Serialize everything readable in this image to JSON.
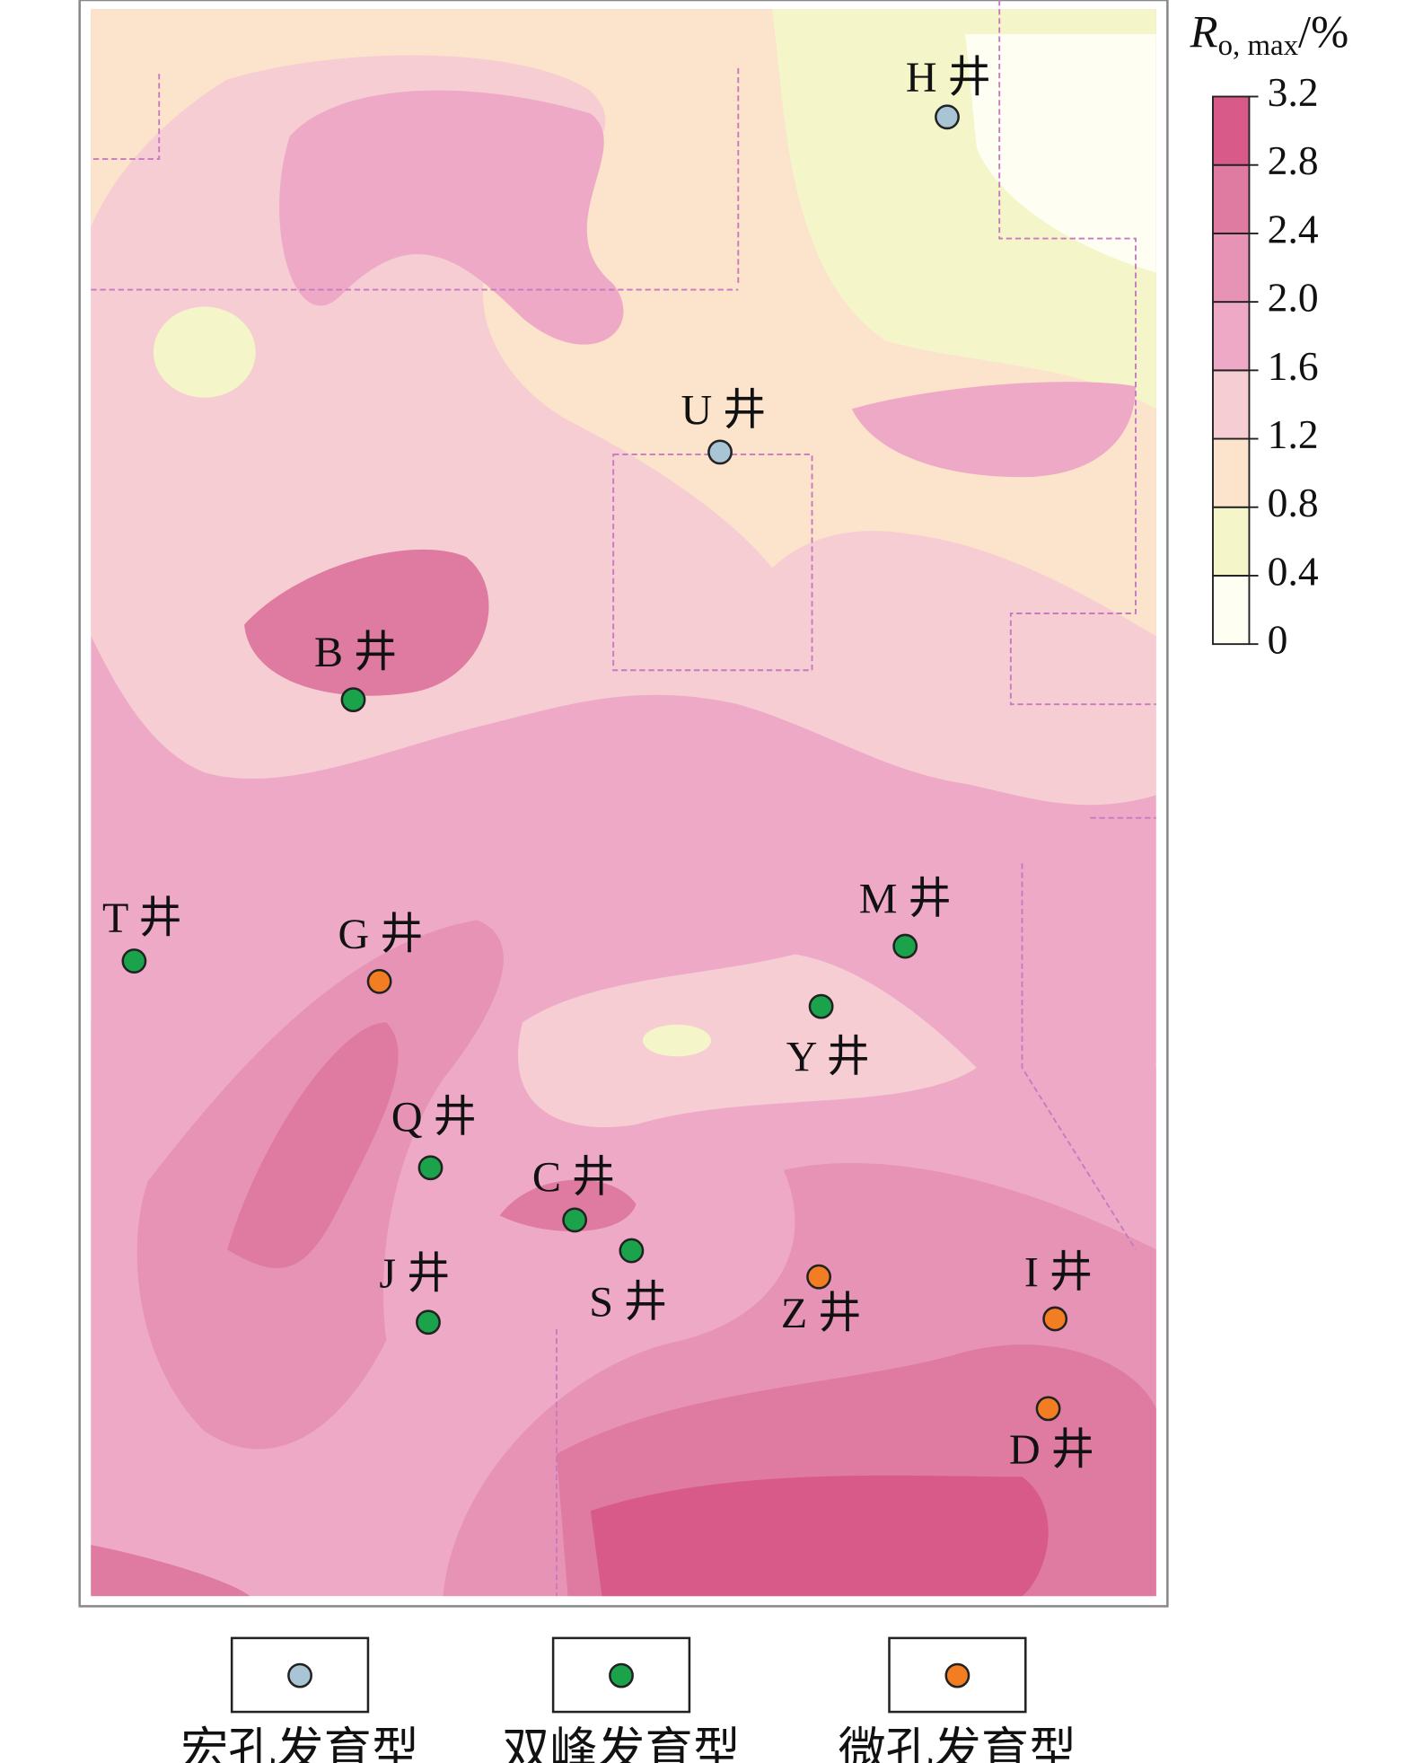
{
  "colorbar": {
    "title": {
      "symbol": "R",
      "subscript": "o, max",
      "unit": "/%"
    },
    "ticks": [
      0,
      0.4,
      0.8,
      1.2,
      1.6,
      2.0,
      2.4,
      2.8,
      3.2
    ],
    "colors": [
      "#fefef2",
      "#f4f6c9",
      "#fbe4cb",
      "#f6cdd3",
      "#eea9c7",
      "#e693b5",
      "#df7aa0",
      "#d85a88"
    ]
  },
  "wells": [
    {
      "label": "H 井",
      "type": 0
    },
    {
      "label": "U 井",
      "type": 0
    },
    {
      "label": "B 井",
      "type": 1
    },
    {
      "label": "T 井",
      "type": 1
    },
    {
      "label": "G 井",
      "type": 2
    },
    {
      "label": "M 井",
      "type": 1
    },
    {
      "label": "Y 井",
      "type": 1
    },
    {
      "label": "Q 井",
      "type": 1
    },
    {
      "label": "C 井",
      "type": 1
    },
    {
      "label": "S 井",
      "type": 1
    },
    {
      "label": "J 井",
      "type": 1
    },
    {
      "label": "Z 井",
      "type": 2
    },
    {
      "label": "I 井",
      "type": 2
    },
    {
      "label": "D 井",
      "type": 2
    }
  ],
  "legend": [
    {
      "label": "宏孔发育型",
      "color": "#a9c4d4"
    },
    {
      "label": "双峰发育型",
      "color": "#1aa34a"
    },
    {
      "label": "微孔发育型",
      "color": "#f27d22"
    }
  ]
}
